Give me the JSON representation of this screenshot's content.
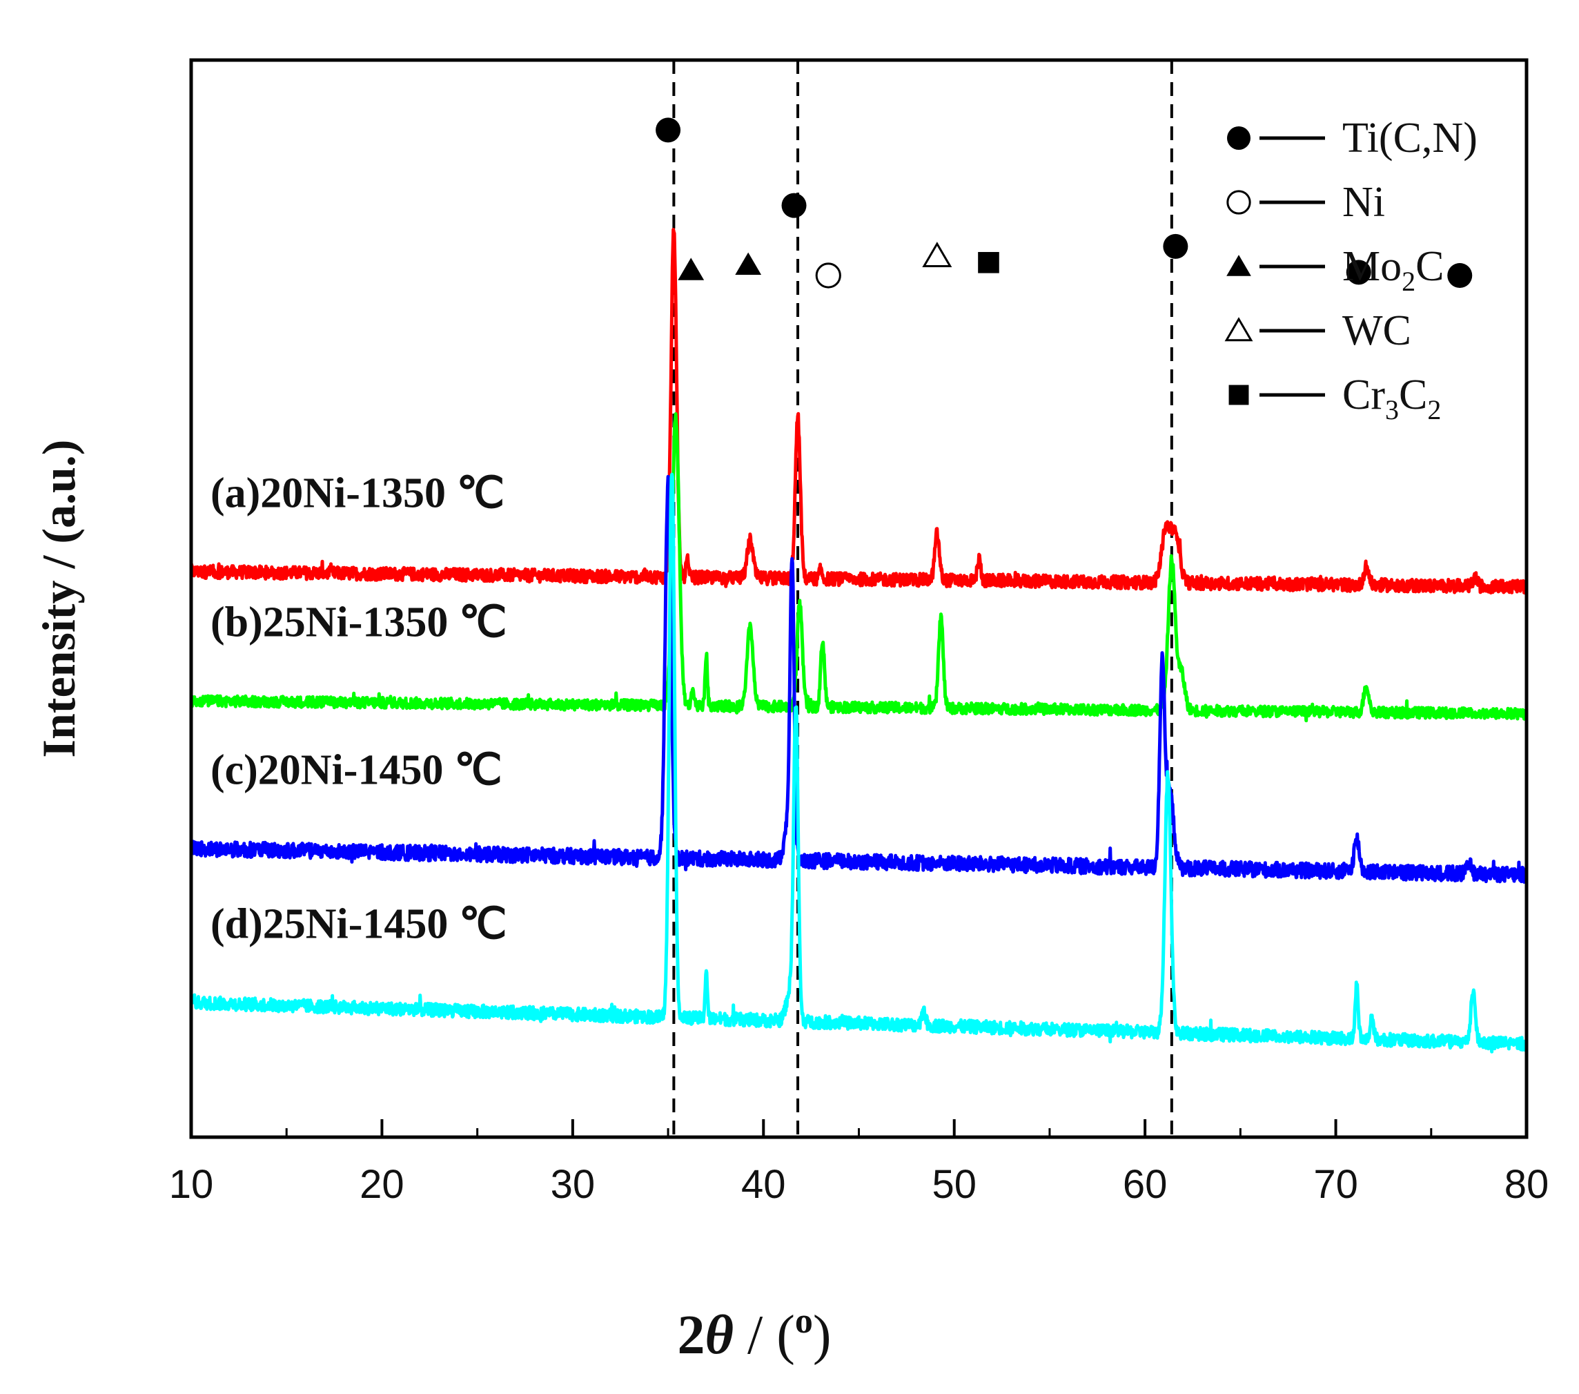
{
  "chart_data": {
    "type": "line",
    "title": "",
    "xlabel": "2θ / (°)",
    "xlabel_parts": {
      "prefix": "2",
      "theta": "θ",
      "slash": " / (",
      "degree": "o",
      "suffix": ")"
    },
    "ylabel": "Intensity / (a.u.)",
    "xlim": [
      10,
      80
    ],
    "xticks": [
      10,
      20,
      30,
      40,
      50,
      60,
      70,
      80
    ],
    "grid": false,
    "legend_position": "top-right",
    "reference_lines_x": [
      35.3,
      41.8,
      61.4
    ],
    "phases": [
      {
        "symbol": "filled-circle",
        "name": "Ti(C,N)",
        "base": "Ti(C,N)",
        "sub1": "",
        "mid": "",
        "sub2": ""
      },
      {
        "symbol": "open-circle",
        "name": "Ni",
        "base": "Ni",
        "sub1": "",
        "mid": "",
        "sub2": ""
      },
      {
        "symbol": "filled-triangle",
        "name": "Mo2C",
        "base": "Mo",
        "sub1": "2",
        "mid": "C",
        "sub2": ""
      },
      {
        "symbol": "open-triangle",
        "name": "WC",
        "base": "WC",
        "sub1": "",
        "mid": "",
        "sub2": ""
      },
      {
        "symbol": "filled-square",
        "name": "Cr3C2",
        "base": "Cr",
        "sub1": "3",
        "mid": "C",
        "sub2": "2"
      }
    ],
    "peak_markers": [
      {
        "symbol": "filled-circle",
        "x": 35.0,
        "level": 0.935
      },
      {
        "symbol": "filled-circle",
        "x": 41.6,
        "level": 0.865
      },
      {
        "symbol": "filled-circle",
        "x": 61.6,
        "level": 0.827
      },
      {
        "symbol": "filled-circle",
        "x": 71.2,
        "level": 0.803
      },
      {
        "symbol": "filled-circle",
        "x": 76.5,
        "level": 0.8
      },
      {
        "symbol": "filled-triangle",
        "x": 36.2,
        "level": 0.805
      },
      {
        "symbol": "filled-triangle",
        "x": 39.2,
        "level": 0.81
      },
      {
        "symbol": "open-circle",
        "x": 43.4,
        "level": 0.8
      },
      {
        "symbol": "open-triangle",
        "x": 49.1,
        "level": 0.818
      },
      {
        "symbol": "filled-square",
        "x": 51.8,
        "level": 0.812
      }
    ],
    "series": [
      {
        "name": "(a)20Ni-1350 ℃",
        "label": "(a)20Ni-1350 ℃",
        "color": "#ff0000",
        "baseline": 0.525,
        "slope": -0.0002,
        "noise": 0.006,
        "peaks": [
          {
            "x": 35.3,
            "h": 0.325,
            "w": 0.14
          },
          {
            "x": 36.0,
            "h": 0.017,
            "w": 0.06
          },
          {
            "x": 39.3,
            "h": 0.035,
            "w": 0.15
          },
          {
            "x": 41.8,
            "h": 0.15,
            "w": 0.13
          },
          {
            "x": 43.0,
            "h": 0.008,
            "w": 0.07
          },
          {
            "x": 49.1,
            "h": 0.043,
            "w": 0.12
          },
          {
            "x": 51.3,
            "h": 0.02,
            "w": 0.09
          },
          {
            "x": 61.1,
            "h": 0.05,
            "w": 0.22
          },
          {
            "x": 61.6,
            "h": 0.045,
            "w": 0.22
          },
          {
            "x": 71.6,
            "h": 0.017,
            "w": 0.13
          },
          {
            "x": 77.3,
            "h": 0.008,
            "w": 0.11
          }
        ]
      },
      {
        "name": "(b)25Ni-1350 ℃",
        "label": "(b)25Ni-1350 ℃",
        "color": "#00ff00",
        "baseline": 0.405,
        "slope": -0.00017,
        "noise": 0.005,
        "peaks": [
          {
            "x": 35.4,
            "h": 0.27,
            "w": 0.18
          },
          {
            "x": 36.3,
            "h": 0.015,
            "w": 0.07
          },
          {
            "x": 37.0,
            "h": 0.048,
            "w": 0.06
          },
          {
            "x": 39.3,
            "h": 0.075,
            "w": 0.15
          },
          {
            "x": 41.9,
            "h": 0.095,
            "w": 0.14
          },
          {
            "x": 43.1,
            "h": 0.062,
            "w": 0.1
          },
          {
            "x": 49.3,
            "h": 0.085,
            "w": 0.12
          },
          {
            "x": 61.4,
            "h": 0.14,
            "w": 0.18
          },
          {
            "x": 61.9,
            "h": 0.035,
            "w": 0.18
          },
          {
            "x": 71.6,
            "h": 0.025,
            "w": 0.13
          }
        ]
      },
      {
        "name": "(c)20Ni-1450 ℃",
        "label": "(c)20Ni-1450 ℃",
        "color": "#0000ff",
        "baseline": 0.268,
        "slope": -0.00035,
        "noise": 0.007,
        "peaks": [
          {
            "x": 35.0,
            "h": 0.35,
            "w": 0.15
          },
          {
            "x": 41.2,
            "h": 0.03,
            "w": 0.15
          },
          {
            "x": 41.5,
            "h": 0.275,
            "w": 0.11
          },
          {
            "x": 60.9,
            "h": 0.185,
            "w": 0.13
          },
          {
            "x": 61.3,
            "h": 0.07,
            "w": 0.2
          },
          {
            "x": 71.1,
            "h": 0.03,
            "w": 0.14
          },
          {
            "x": 77.0,
            "h": 0.008,
            "w": 0.12
          }
        ]
      },
      {
        "name": "(d)25Ni-1450 ℃",
        "label": "(d)25Ni-1450 ℃",
        "color": "#00ffff",
        "baseline": 0.125,
        "slope": -0.00055,
        "noise": 0.006,
        "peaks": [
          {
            "x": 35.2,
            "h": 0.51,
            "w": 0.14
          },
          {
            "x": 37.0,
            "h": 0.045,
            "w": 0.06
          },
          {
            "x": 41.4,
            "h": 0.028,
            "w": 0.2
          },
          {
            "x": 41.7,
            "h": 0.285,
            "w": 0.12
          },
          {
            "x": 48.4,
            "h": 0.015,
            "w": 0.09
          },
          {
            "x": 61.2,
            "h": 0.24,
            "w": 0.16
          },
          {
            "x": 71.1,
            "h": 0.05,
            "w": 0.08
          },
          {
            "x": 71.9,
            "h": 0.022,
            "w": 0.08
          },
          {
            "x": 77.2,
            "h": 0.048,
            "w": 0.12
          }
        ]
      }
    ]
  }
}
